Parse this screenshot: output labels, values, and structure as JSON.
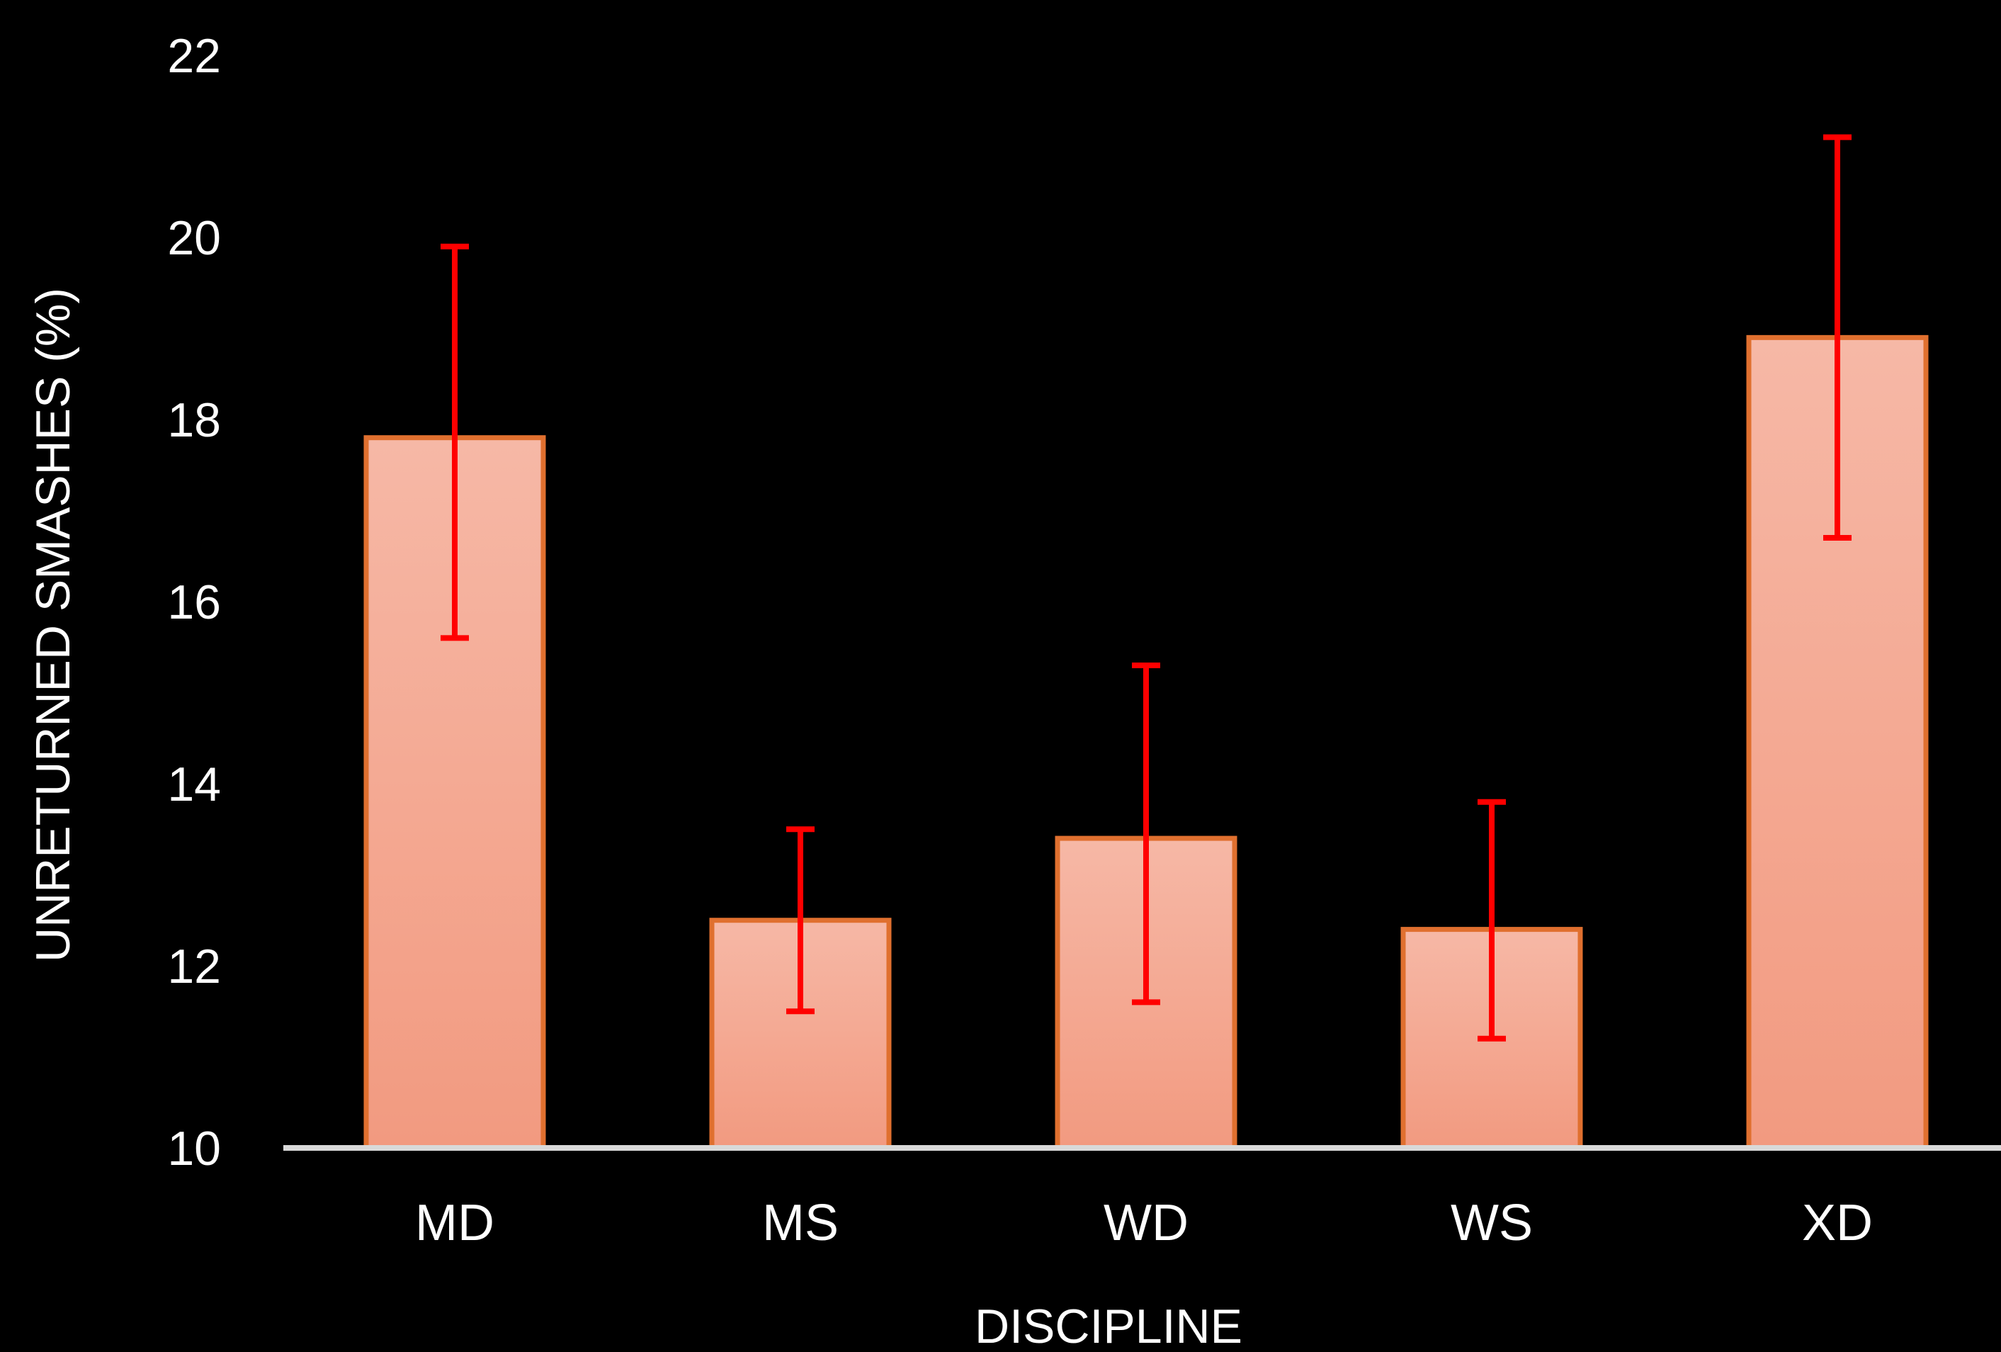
{
  "chart_data": {
    "type": "bar",
    "title": "",
    "xlabel": "DISCIPLINE",
    "ylabel": "UNRETURNED SMASHES (%)",
    "categories": [
      "MD",
      "MS",
      "WD",
      "WS",
      "XD"
    ],
    "values": [
      17.8,
      12.5,
      13.4,
      12.4,
      18.9
    ],
    "error_low": [
      15.6,
      11.5,
      11.6,
      11.2,
      16.7
    ],
    "error_high": [
      19.9,
      13.5,
      15.3,
      13.8,
      21.1
    ],
    "ylim": [
      10,
      22
    ],
    "yticks": [
      "10",
      "12",
      "14",
      "16",
      "18",
      "20",
      "22"
    ],
    "grid": false,
    "legend": "none",
    "colors": {
      "background": "#000000",
      "bar_fill_top": "#f6b8a6",
      "bar_fill_bottom": "#f29a80",
      "bar_stroke": "#e0702f",
      "error_bar": "#ff0000",
      "axis_line": "#d9d9d9",
      "text": "#ffffff"
    }
  }
}
